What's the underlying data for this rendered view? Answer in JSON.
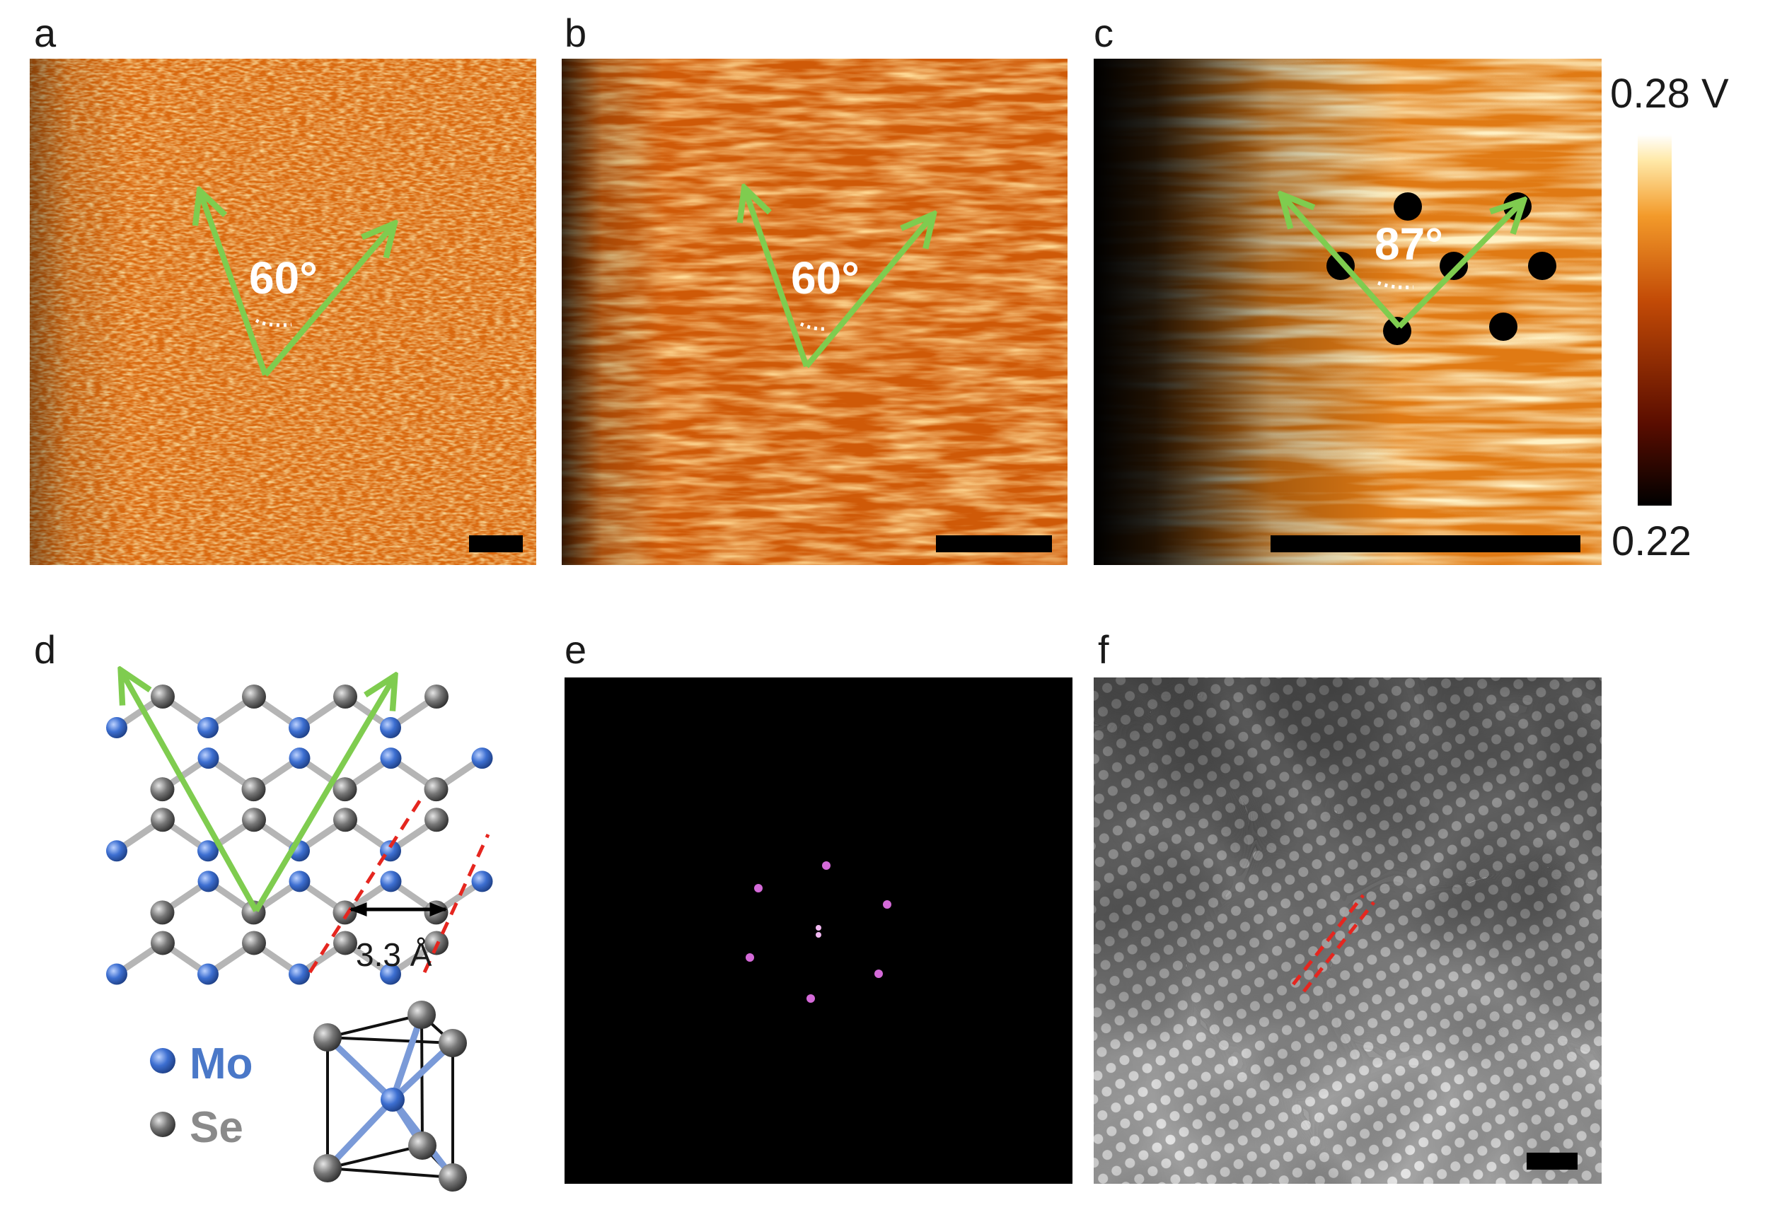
{
  "panels": {
    "a": {
      "label": "a",
      "angle": "60°"
    },
    "b": {
      "label": "b",
      "angle": "60°"
    },
    "c": {
      "label": "c",
      "angle": "87°"
    },
    "d": {
      "label": "d",
      "distance": "3.3 Å",
      "legend": [
        {
          "element": "Mo",
          "color": "#3d6fd1"
        },
        {
          "element": "Se",
          "color": "#777777"
        }
      ]
    },
    "e": {
      "label": "e"
    },
    "f": {
      "label": "f"
    }
  },
  "colorbar": {
    "max_label": "0.28 V",
    "min_label": "0.22",
    "colors": [
      "#000000",
      "#5a0d00",
      "#c24a06",
      "#f39a2a",
      "#ffe9a8",
      "#ffffff"
    ]
  },
  "colors": {
    "arrow": "#7fcc4f",
    "stm_base": "#d9690f",
    "red_dash": "#e5261f",
    "mo_atom": "#3d6fd1",
    "se_atom": "#777777"
  }
}
